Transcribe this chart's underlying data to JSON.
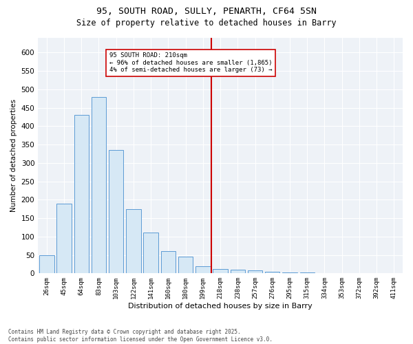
{
  "title1": "95, SOUTH ROAD, SULLY, PENARTH, CF64 5SN",
  "title2": "Size of property relative to detached houses in Barry",
  "xlabel": "Distribution of detached houses by size in Barry",
  "ylabel": "Number of detached properties",
  "categories": [
    "26sqm",
    "45sqm",
    "64sqm",
    "83sqm",
    "103sqm",
    "122sqm",
    "141sqm",
    "160sqm",
    "180sqm",
    "199sqm",
    "218sqm",
    "238sqm",
    "257sqm",
    "276sqm",
    "295sqm",
    "315sqm",
    "334sqm",
    "353sqm",
    "372sqm",
    "392sqm",
    "411sqm"
  ],
  "values": [
    50,
    190,
    430,
    480,
    335,
    175,
    110,
    60,
    45,
    20,
    12,
    10,
    8,
    5,
    3,
    2,
    1,
    1,
    0,
    1,
    0
  ],
  "bar_color": "#d6e8f5",
  "bar_edge_color": "#5b9bd5",
  "vline_color": "#cc0000",
  "annotation_text": "95 SOUTH ROAD: 210sqm\n← 96% of detached houses are smaller (1,865)\n4% of semi-detached houses are larger (73) →",
  "ylim": [
    0,
    640
  ],
  "yticks": [
    0,
    50,
    100,
    150,
    200,
    250,
    300,
    350,
    400,
    450,
    500,
    550,
    600
  ],
  "background_color": "#eef2f7",
  "footer_text": "Contains HM Land Registry data © Crown copyright and database right 2025.\nContains public sector information licensed under the Open Government Licence v3.0.",
  "figsize": [
    6.0,
    5.0
  ],
  "dpi": 100
}
